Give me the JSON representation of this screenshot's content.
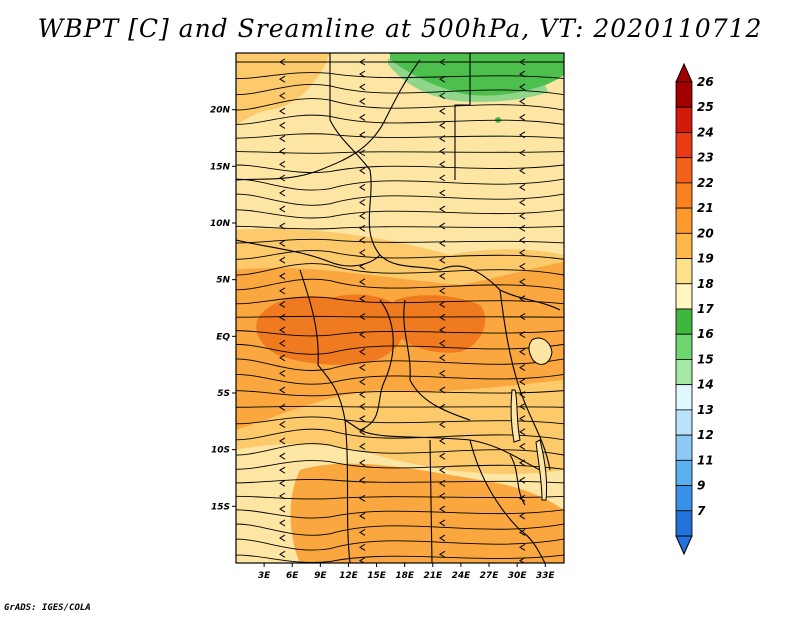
{
  "title": "WBPT [C] and Sreamline at 500hPa, VT: 2020110712",
  "credit": "GrADS: IGES/COLA",
  "map": {
    "lon_range": [
      0,
      35
    ],
    "lat_range": [
      -20,
      25
    ],
    "lon_ticks": [
      "3E",
      "6E",
      "9E",
      "12E",
      "15E",
      "18E",
      "21E",
      "24E",
      "27E",
      "30E",
      "33E"
    ],
    "lat_ticks": [
      "20N",
      "15N",
      "10N",
      "5N",
      "EQ",
      "5S",
      "10S",
      "15S"
    ],
    "region_colors": {
      "base": "#fde6a4",
      "warm_21": "#fcc96b",
      "warm_22": "#f9a73e",
      "warm_23": "#f07a1f",
      "cool_17": "#4dbf4d",
      "cool_18": "#8fd68a"
    }
  },
  "colorbar": {
    "levels": [
      "26",
      "25",
      "24",
      "23",
      "22",
      "21",
      "20",
      "19",
      "18",
      "17",
      "16",
      "15",
      "14",
      "13",
      "12",
      "11",
      "9",
      "7"
    ],
    "colors": [
      "#a30000",
      "#d11a0a",
      "#ea3a14",
      "#f2611c",
      "#f7821f",
      "#fa9a2c",
      "#fcb84a",
      "#fde08a",
      "#fff6c2",
      "#3fb73f",
      "#6ed46e",
      "#a6e9a6",
      "#e0f7ff",
      "#b9e3fb",
      "#8ccaf5",
      "#5aaff0",
      "#3a90e6",
      "#2372dc"
    ]
  }
}
